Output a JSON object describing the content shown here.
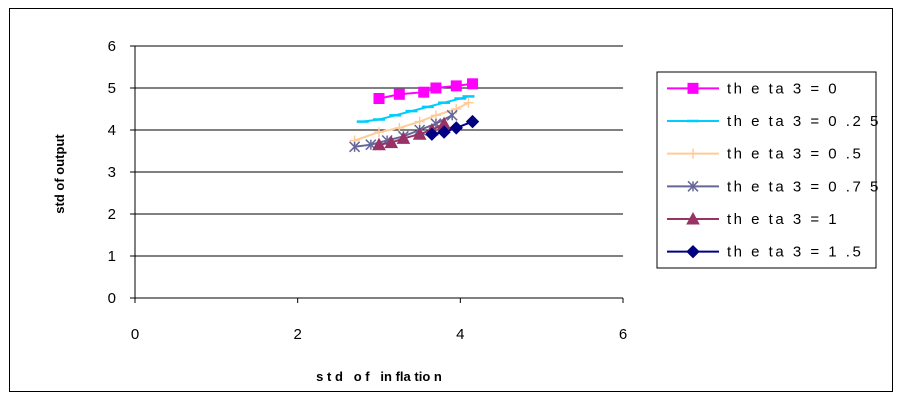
{
  "chart_data": {
    "type": "scatter",
    "title": "",
    "xlabel": "s t d   o f   in fla tio n",
    "ylabel": "std of output",
    "xlim": [
      0,
      6
    ],
    "ylim": [
      0,
      6
    ],
    "x_ticks": [
      "0",
      "2",
      "4",
      "6"
    ],
    "y_ticks": [
      "0",
      "1",
      "2",
      "3",
      "4",
      "5",
      "6"
    ],
    "grid": "horizontal",
    "legend_position": "right",
    "series": [
      {
        "name": "th e ta 3 = 0",
        "color": "#FF00FF",
        "marker": "square",
        "x": [
          3.0,
          3.25,
          3.55,
          3.7,
          3.95,
          4.15
        ],
        "y": [
          4.75,
          4.85,
          4.9,
          5.0,
          5.05,
          5.1
        ]
      },
      {
        "name": "th e ta 3 = 0 .2 5",
        "color": "#00CCFF",
        "marker": "dash",
        "x": [
          2.8,
          3.0,
          3.2,
          3.4,
          3.6,
          3.8,
          4.0,
          4.1
        ],
        "y": [
          4.2,
          4.25,
          4.35,
          4.45,
          4.55,
          4.65,
          4.75,
          4.8
        ]
      },
      {
        "name": "th e ta 3 = 0 .5",
        "color": "#FFCC99",
        "marker": "plus",
        "x": [
          2.7,
          3.0,
          3.25,
          3.5,
          3.7,
          3.95,
          4.1
        ],
        "y": [
          3.75,
          3.95,
          4.05,
          4.2,
          4.35,
          4.5,
          4.65
        ]
      },
      {
        "name": "th e ta 3 = 0 .7 5",
        "color": "#666699",
        "marker": "star",
        "x": [
          2.7,
          2.9,
          3.1,
          3.3,
          3.5,
          3.7,
          3.9
        ],
        "y": [
          3.6,
          3.65,
          3.75,
          3.85,
          4.0,
          4.15,
          4.35
        ]
      },
      {
        "name": "th e ta 3 = 1",
        "color": "#993366",
        "marker": "triangle",
        "x": [
          3.0,
          3.15,
          3.3,
          3.5,
          3.65,
          3.8
        ],
        "y": [
          3.65,
          3.7,
          3.8,
          3.9,
          4.0,
          4.15
        ]
      },
      {
        "name": "th e ta 3 = 1 .5",
        "color": "#000080",
        "marker": "diamond",
        "x": [
          3.65,
          3.8,
          3.95,
          4.15
        ],
        "y": [
          3.9,
          3.95,
          4.05,
          4.2
        ]
      }
    ]
  }
}
